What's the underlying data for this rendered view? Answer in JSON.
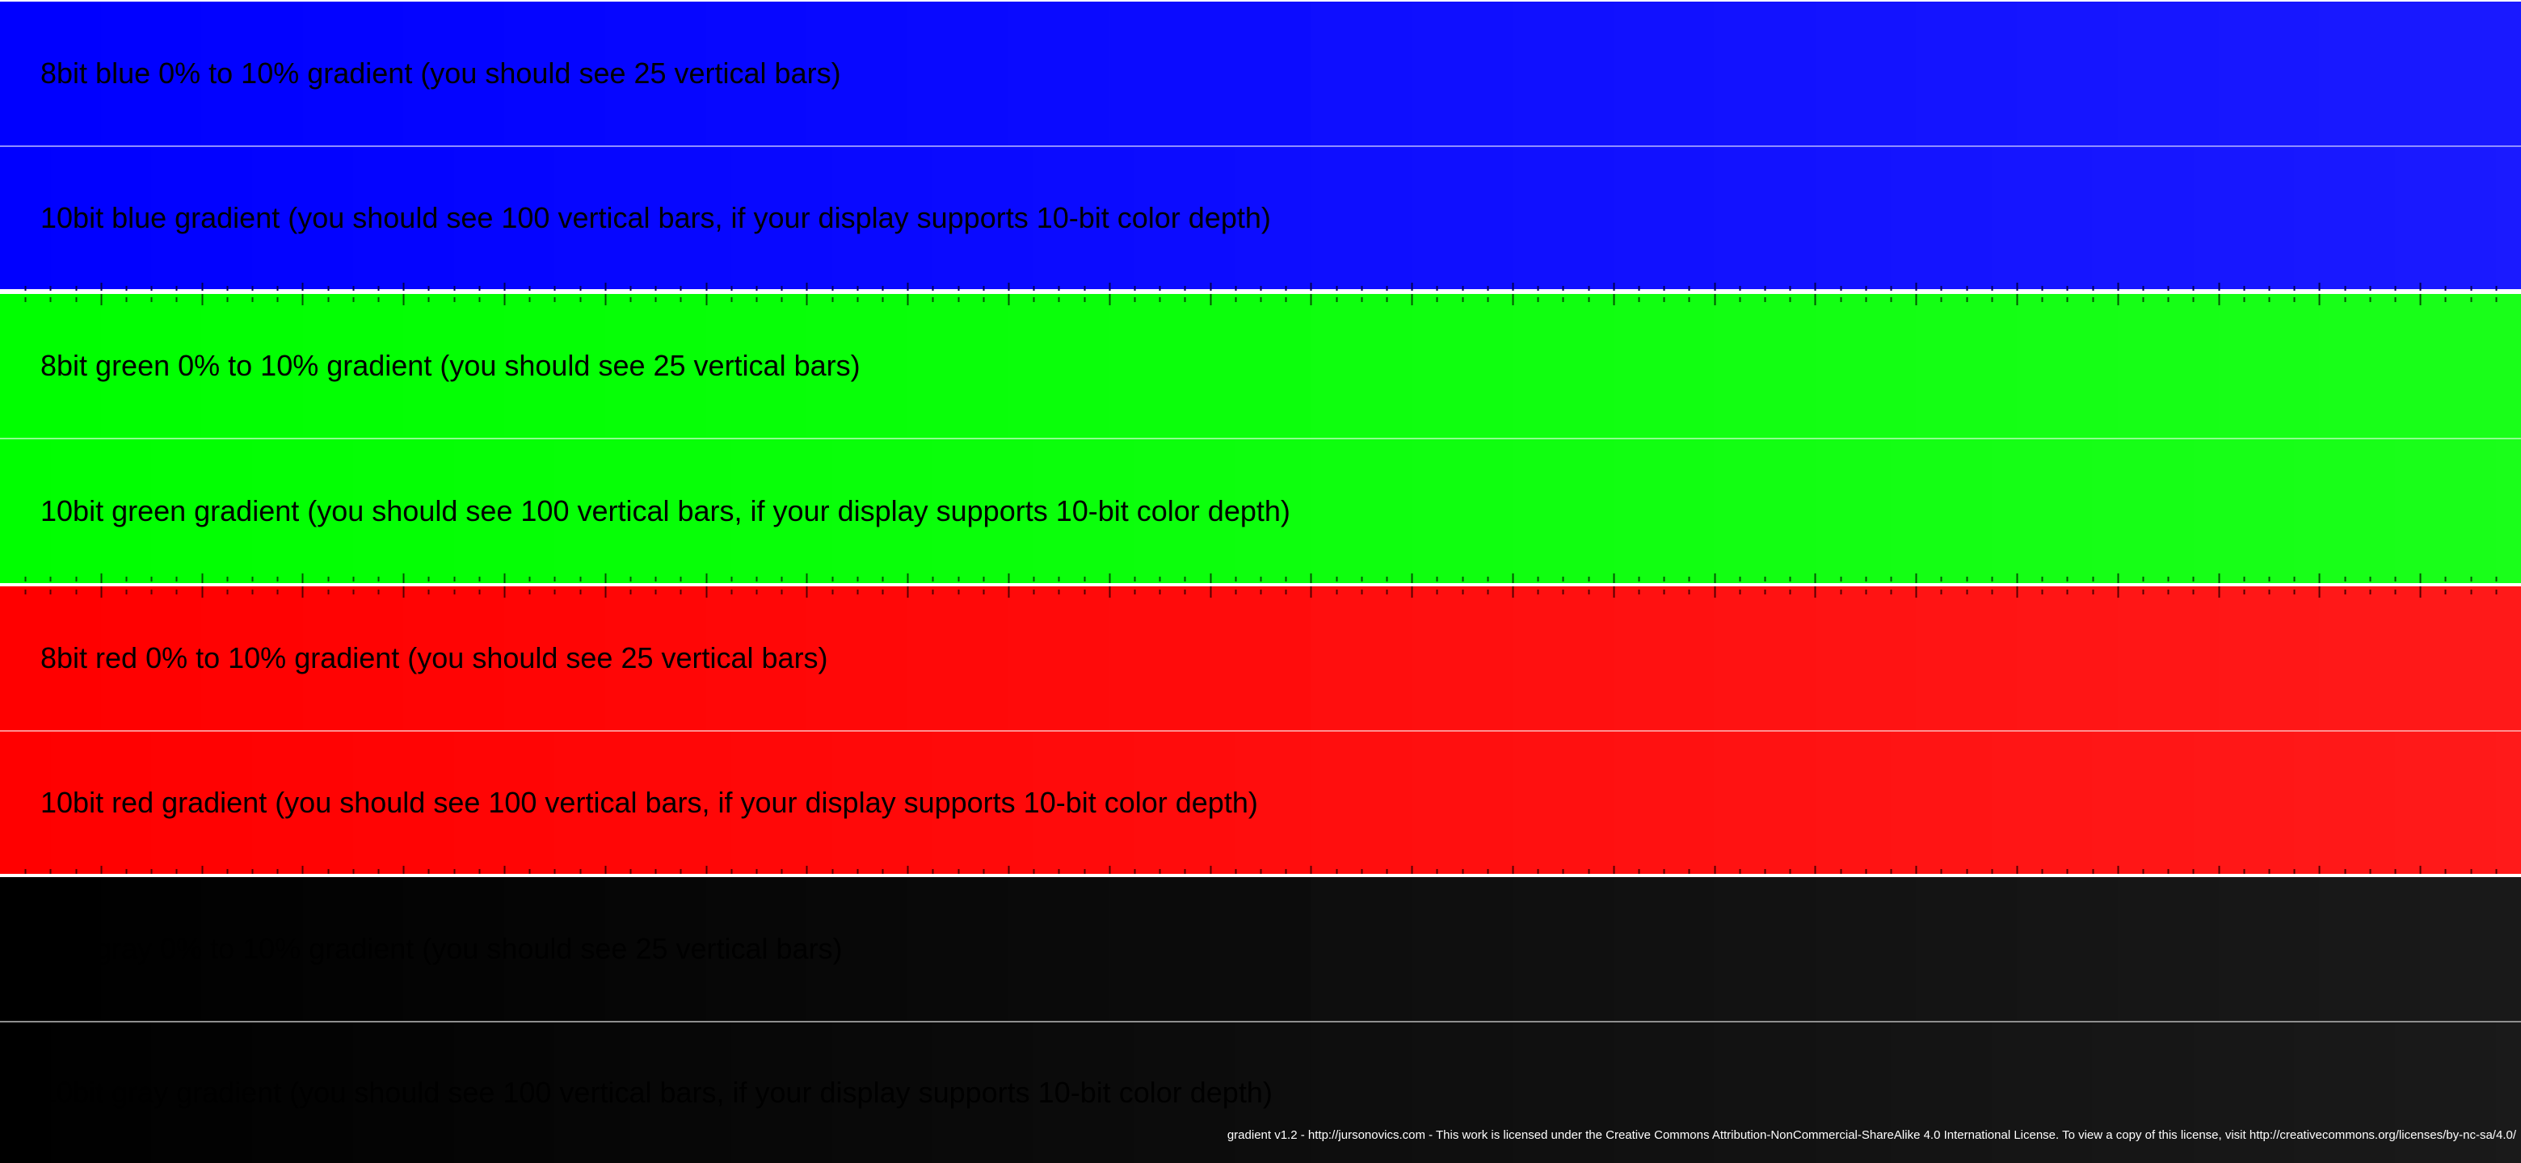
{
  "bands": [
    {
      "id": "blue-8bit",
      "label": "8bit blue 0% to 10% gradient (you should see 25 vertical bars)",
      "channel": "blue",
      "bits": 8,
      "steps": 25,
      "range_percent": [
        0,
        10
      ],
      "color": "#0000ff"
    },
    {
      "id": "blue-10bit",
      "label": "10bit blue gradient (you should see 100 vertical bars, if your display supports 10-bit color depth)",
      "channel": "blue",
      "bits": 10,
      "steps": 100,
      "color": "#0000ff"
    },
    {
      "id": "green-8bit",
      "label": "8bit green 0% to 10% gradient (you should see 25 vertical bars)",
      "channel": "green",
      "bits": 8,
      "steps": 25,
      "range_percent": [
        0,
        10
      ],
      "color": "#00ff00"
    },
    {
      "id": "green-10bit",
      "label": "10bit green gradient (you should see 100 vertical bars, if your display supports 10-bit color depth)",
      "channel": "green",
      "bits": 10,
      "steps": 100,
      "color": "#00ff00"
    },
    {
      "id": "red-8bit",
      "label": "8bit red 0% to 10% gradient (you should see 25 vertical bars)",
      "channel": "red",
      "bits": 8,
      "steps": 25,
      "range_percent": [
        0,
        10
      ],
      "color": "#ff0000"
    },
    {
      "id": "red-10bit",
      "label": "10bit red gradient (you should see 100 vertical bars, if your display supports 10-bit color depth)",
      "channel": "red",
      "bits": 10,
      "steps": 100,
      "color": "#ff0000"
    },
    {
      "id": "gray-8bit",
      "label": "8bit gray 0% to 10% gradient (you should see 25 vertical bars)",
      "channel": "gray",
      "bits": 8,
      "steps": 25,
      "range_percent": [
        0,
        10
      ],
      "color": "#000000"
    },
    {
      "id": "gray-10bit",
      "label": "10bit gray gradient (you should see 100 vertical bars, if your display supports 10-bit color depth)",
      "channel": "gray",
      "bits": 10,
      "steps": 100,
      "color": "#000000"
    }
  ],
  "footer": {
    "text": "gradient v1.2 - http://jursonovics.com - This work is licensed under the Creative Commons Attribution-NonCommercial-ShareAlike 4.0 International License. To view a copy of this license, visit http://creativecommons.org/licenses/by-nc-sa/4.0/"
  }
}
